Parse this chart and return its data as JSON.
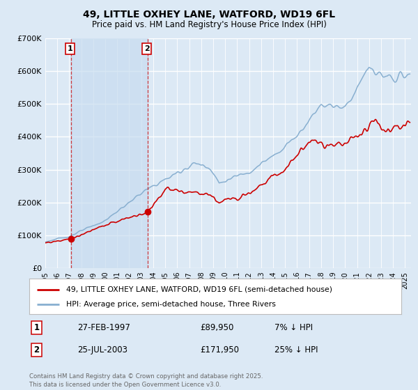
{
  "title": "49, LITTLE OXHEY LANE, WATFORD, WD19 6FL",
  "subtitle": "Price paid vs. HM Land Registry's House Price Index (HPI)",
  "ylabel_max": 700000,
  "yticks": [
    0,
    100000,
    200000,
    300000,
    400000,
    500000,
    600000,
    700000
  ],
  "ytick_labels": [
    "£0",
    "£100K",
    "£200K",
    "£300K",
    "£400K",
    "£500K",
    "£600K",
    "£700K"
  ],
  "xmin": 1995.0,
  "xmax": 2025.5,
  "purchase1_x": 1997.15,
  "purchase1_y": 89950,
  "purchase1_label": "1",
  "purchase2_x": 2003.56,
  "purchase2_y": 171950,
  "purchase2_label": "2",
  "legend_line1": "49, LITTLE OXHEY LANE, WATFORD, WD19 6FL (semi-detached house)",
  "legend_line2": "HPI: Average price, semi-detached house, Three Rivers",
  "table_row1": [
    "1",
    "27-FEB-1997",
    "£89,950",
    "7% ↓ HPI"
  ],
  "table_row2": [
    "2",
    "25-JUL-2003",
    "£171,950",
    "25% ↓ HPI"
  ],
  "footnote": "Contains HM Land Registry data © Crown copyright and database right 2025.\nThis data is licensed under the Open Government Licence v3.0.",
  "bg_color": "#dce9f5",
  "grid_color": "#ffffff",
  "red_color": "#cc0000",
  "blue_color": "#88afd0",
  "shade_color": "#c8dcf0"
}
